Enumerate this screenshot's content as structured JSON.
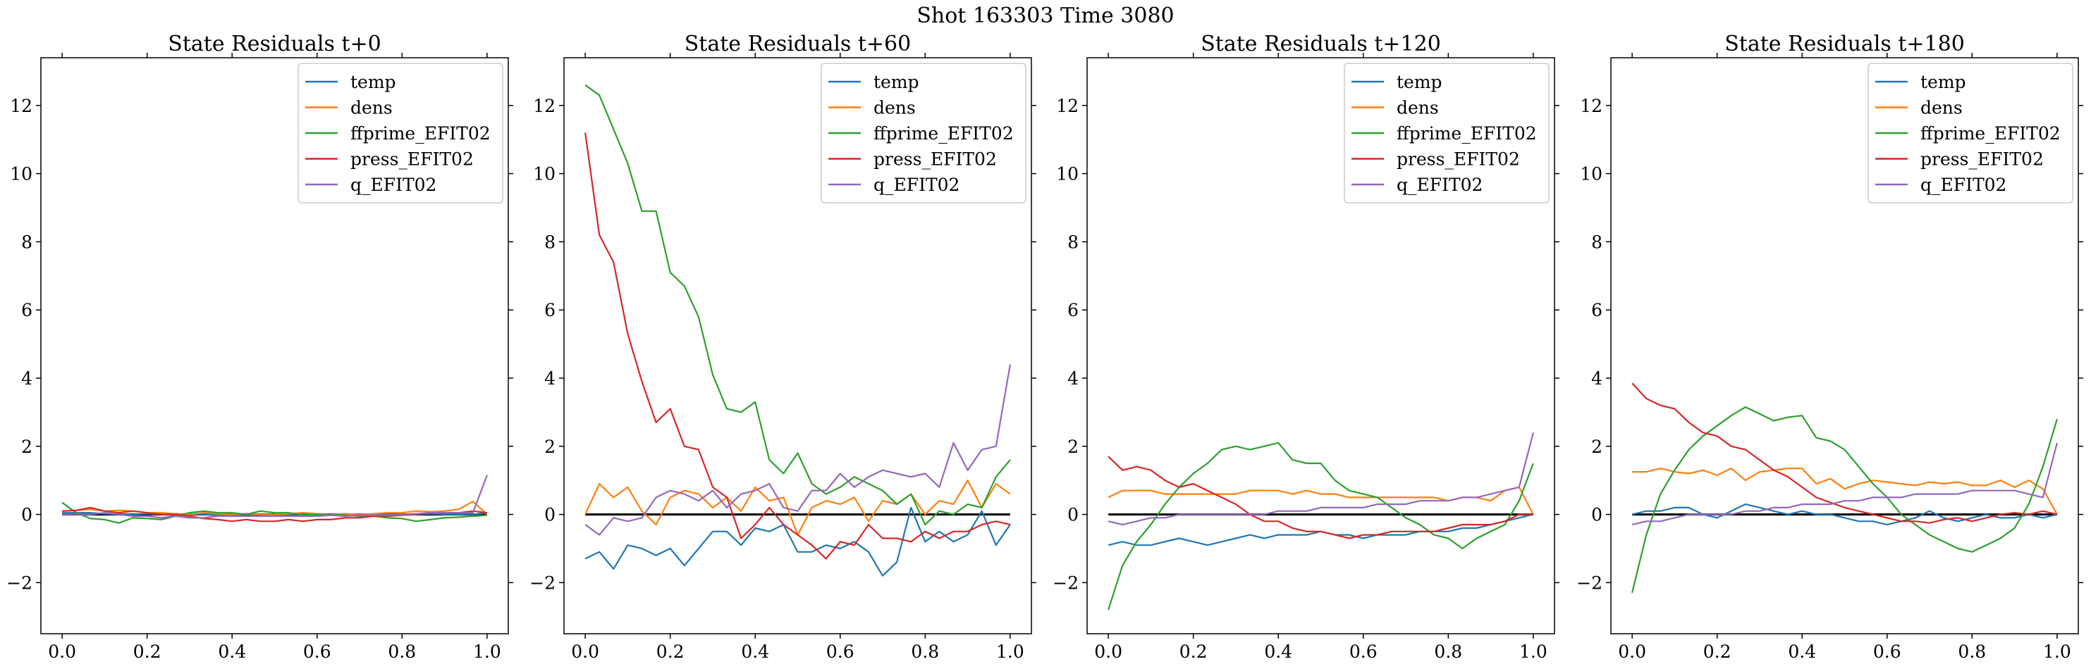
{
  "figure": {
    "title": "Shot 163303   Time 3080"
  },
  "chart_data": [
    {
      "type": "line",
      "title": "State Residuals t+0",
      "xlabel": "",
      "ylabel": "",
      "xlim": [
        -0.05,
        1.05
      ],
      "ylim": [
        -3.5,
        13.4
      ],
      "xticks": [
        "0.0",
        "0.2",
        "0.4",
        "0.6",
        "0.8",
        "1.0"
      ],
      "yticks": [
        "−2",
        "0",
        "2",
        "4",
        "6",
        "8",
        "10",
        "12"
      ],
      "grid": false,
      "legend": "top-right",
      "zero_line": true,
      "x": [
        0.0,
        0.0333,
        0.0667,
        0.1,
        0.1333,
        0.1667,
        0.2,
        0.2333,
        0.2667,
        0.3,
        0.3333,
        0.3667,
        0.4,
        0.4333,
        0.4667,
        0.5,
        0.5333,
        0.5667,
        0.6,
        0.6333,
        0.6667,
        0.7,
        0.7333,
        0.7667,
        0.8,
        0.8333,
        0.8667,
        0.9,
        0.9333,
        0.9667,
        1.0
      ],
      "series": [
        {
          "name": "temp",
          "color": "#1f77b4",
          "values": [
            0.05,
            0.05,
            0.05,
            0.02,
            0.0,
            0.0,
            0.02,
            0.0,
            -0.02,
            0.0,
            0.0,
            -0.02,
            -0.02,
            0.0,
            0.0,
            -0.02,
            0.0,
            0.0,
            -0.02,
            0.0,
            0.0,
            0.0,
            -0.02,
            0.0,
            0.0,
            0.0,
            0.02,
            0.0,
            0.0,
            0.0,
            0.05
          ]
        },
        {
          "name": "dens",
          "color": "#ff7f0e",
          "values": [
            0.1,
            0.12,
            0.15,
            0.1,
            0.12,
            0.1,
            0.05,
            0.05,
            0.02,
            0.0,
            0.05,
            0.02,
            0.0,
            0.02,
            0.0,
            0.0,
            0.02,
            0.05,
            0.02,
            0.0,
            0.02,
            0.0,
            0.02,
            0.05,
            0.05,
            0.1,
            0.08,
            0.1,
            0.15,
            0.38,
            0.0
          ]
        },
        {
          "name": "ffprime_EFIT02",
          "color": "#2ca02c",
          "values": [
            0.35,
            0.05,
            -0.12,
            -0.15,
            -0.25,
            -0.1,
            -0.12,
            -0.15,
            -0.05,
            0.05,
            0.1,
            0.05,
            0.05,
            0.0,
            0.1,
            0.05,
            0.05,
            -0.02,
            0.0,
            0.0,
            -0.02,
            -0.05,
            -0.05,
            -0.1,
            -0.12,
            -0.2,
            -0.15,
            -0.1,
            -0.08,
            -0.05,
            -0.02
          ]
        },
        {
          "name": "press_EFIT02",
          "color": "#d62728",
          "values": [
            0.1,
            0.12,
            0.2,
            0.1,
            0.05,
            0.1,
            0.05,
            0.0,
            0.0,
            -0.05,
            -0.12,
            -0.15,
            -0.2,
            -0.15,
            -0.2,
            -0.2,
            -0.15,
            -0.2,
            -0.15,
            -0.15,
            -0.1,
            -0.1,
            -0.05,
            -0.05,
            -0.02,
            0.0,
            0.05,
            0.05,
            0.05,
            0.1,
            0.05
          ]
        },
        {
          "name": "q_EFIT02",
          "color": "#9467bd",
          "values": [
            0.0,
            0.0,
            0.0,
            0.05,
            0.0,
            -0.05,
            -0.05,
            -0.1,
            -0.05,
            -0.1,
            -0.1,
            -0.05,
            -0.05,
            -0.05,
            -0.05,
            -0.05,
            -0.05,
            -0.05,
            -0.05,
            -0.02,
            -0.05,
            -0.02,
            -0.02,
            -0.02,
            0.0,
            0.02,
            0.05,
            0.05,
            0.05,
            0.05,
            1.15
          ]
        }
      ]
    },
    {
      "type": "line",
      "title": "State Residuals t+60",
      "xlabel": "",
      "ylabel": "",
      "xlim": [
        -0.05,
        1.05
      ],
      "ylim": [
        -3.5,
        13.4
      ],
      "xticks": [
        "0.0",
        "0.2",
        "0.4",
        "0.6",
        "0.8",
        "1.0"
      ],
      "yticks": [
        "−2",
        "0",
        "2",
        "4",
        "6",
        "8",
        "10",
        "12"
      ],
      "grid": false,
      "legend": "top-right",
      "zero_line": true,
      "x": [
        0.0,
        0.0333,
        0.0667,
        0.1,
        0.1333,
        0.1667,
        0.2,
        0.2333,
        0.2667,
        0.3,
        0.3333,
        0.3667,
        0.4,
        0.4333,
        0.4667,
        0.5,
        0.5333,
        0.5667,
        0.6,
        0.6333,
        0.6667,
        0.7,
        0.7333,
        0.7667,
        0.8,
        0.8333,
        0.8667,
        0.9,
        0.9333,
        0.9667,
        1.0
      ],
      "series": [
        {
          "name": "temp",
          "color": "#1f77b4",
          "values": [
            -1.3,
            -1.1,
            -1.6,
            -0.9,
            -1.0,
            -1.2,
            -1.0,
            -1.5,
            -1.0,
            -0.5,
            -0.5,
            -0.9,
            -0.4,
            -0.5,
            -0.3,
            -1.1,
            -1.1,
            -0.9,
            -1.0,
            -0.8,
            -1.1,
            -1.8,
            -1.4,
            0.2,
            -0.8,
            -0.5,
            -0.8,
            -0.6,
            0.1,
            -0.9,
            -0.3
          ]
        },
        {
          "name": "dens",
          "color": "#ff7f0e",
          "values": [
            0.0,
            0.9,
            0.5,
            0.8,
            0.1,
            -0.3,
            0.5,
            0.7,
            0.6,
            0.2,
            0.5,
            0.1,
            0.8,
            0.4,
            0.5,
            -0.6,
            0.2,
            0.4,
            0.3,
            0.5,
            -0.2,
            0.4,
            0.3,
            0.6,
            0.0,
            0.4,
            0.3,
            1.0,
            0.2,
            0.9,
            0.6
          ]
        },
        {
          "name": "ffprime_EFIT02",
          "color": "#2ca02c",
          "values": [
            12.6,
            12.3,
            11.3,
            10.3,
            8.9,
            8.9,
            7.1,
            6.7,
            5.8,
            4.1,
            3.1,
            3.0,
            3.3,
            1.6,
            1.2,
            1.8,
            0.9,
            0.6,
            0.8,
            1.1,
            0.9,
            0.7,
            0.3,
            0.6,
            -0.3,
            0.1,
            0.0,
            0.3,
            0.2,
            1.1,
            1.6
          ]
        },
        {
          "name": "press_EFIT02",
          "color": "#d62728",
          "values": [
            11.2,
            8.2,
            7.4,
            5.3,
            3.9,
            2.7,
            3.1,
            2.0,
            1.9,
            0.8,
            0.5,
            -0.7,
            -0.3,
            0.2,
            -0.3,
            -0.6,
            -0.9,
            -1.3,
            -0.8,
            -0.9,
            -0.3,
            -0.7,
            -0.7,
            -0.8,
            -0.5,
            -0.7,
            -0.5,
            -0.5,
            -0.3,
            -0.2,
            -0.3
          ]
        },
        {
          "name": "q_EFIT02",
          "color": "#9467bd",
          "values": [
            -0.3,
            -0.6,
            -0.1,
            -0.2,
            -0.1,
            0.5,
            0.7,
            0.6,
            0.4,
            0.7,
            0.2,
            0.6,
            0.7,
            0.9,
            0.2,
            0.1,
            0.7,
            0.7,
            1.2,
            0.8,
            1.1,
            1.3,
            1.2,
            1.1,
            1.2,
            0.8,
            2.1,
            1.3,
            1.9,
            2.0,
            4.4
          ]
        }
      ]
    },
    {
      "type": "line",
      "title": "State Residuals t+120",
      "xlabel": "",
      "ylabel": "",
      "xlim": [
        -0.05,
        1.05
      ],
      "ylim": [
        -3.5,
        13.4
      ],
      "xticks": [
        "0.0",
        "0.2",
        "0.4",
        "0.6",
        "0.8",
        "1.0"
      ],
      "yticks": [
        "−2",
        "0",
        "2",
        "4",
        "6",
        "8",
        "10",
        "12"
      ],
      "grid": false,
      "legend": "top-right",
      "zero_line": true,
      "x": [
        0.0,
        0.0333,
        0.0667,
        0.1,
        0.1333,
        0.1667,
        0.2,
        0.2333,
        0.2667,
        0.3,
        0.3333,
        0.3667,
        0.4,
        0.4333,
        0.4667,
        0.5,
        0.5333,
        0.5667,
        0.6,
        0.6333,
        0.6667,
        0.7,
        0.7333,
        0.7667,
        0.8,
        0.8333,
        0.8667,
        0.9,
        0.9333,
        0.9667,
        1.0
      ],
      "series": [
        {
          "name": "temp",
          "color": "#1f77b4",
          "values": [
            -0.9,
            -0.8,
            -0.9,
            -0.9,
            -0.8,
            -0.7,
            -0.8,
            -0.9,
            -0.8,
            -0.7,
            -0.6,
            -0.7,
            -0.6,
            -0.6,
            -0.6,
            -0.5,
            -0.6,
            -0.6,
            -0.7,
            -0.6,
            -0.6,
            -0.6,
            -0.5,
            -0.5,
            -0.5,
            -0.4,
            -0.4,
            -0.3,
            -0.2,
            -0.1,
            0.0
          ]
        },
        {
          "name": "dens",
          "color": "#ff7f0e",
          "values": [
            0.5,
            0.7,
            0.7,
            0.7,
            0.6,
            0.6,
            0.6,
            0.6,
            0.6,
            0.6,
            0.7,
            0.7,
            0.7,
            0.6,
            0.7,
            0.6,
            0.6,
            0.5,
            0.5,
            0.5,
            0.5,
            0.5,
            0.5,
            0.5,
            0.4,
            0.5,
            0.5,
            0.4,
            0.7,
            0.8,
            0.0
          ]
        },
        {
          "name": "ffprime_EFIT02",
          "color": "#2ca02c",
          "values": [
            -2.8,
            -1.5,
            -0.8,
            -0.3,
            0.3,
            0.8,
            1.2,
            1.5,
            1.9,
            2.0,
            1.9,
            2.0,
            2.1,
            1.6,
            1.5,
            1.5,
            1.0,
            0.7,
            0.6,
            0.5,
            0.2,
            -0.1,
            -0.3,
            -0.6,
            -0.7,
            -1.0,
            -0.7,
            -0.5,
            -0.3,
            0.4,
            1.5
          ]
        },
        {
          "name": "press_EFIT02",
          "color": "#d62728",
          "values": [
            1.7,
            1.3,
            1.4,
            1.3,
            1.0,
            0.8,
            0.9,
            0.7,
            0.5,
            0.3,
            0.0,
            -0.2,
            -0.2,
            -0.4,
            -0.5,
            -0.5,
            -0.6,
            -0.7,
            -0.6,
            -0.6,
            -0.5,
            -0.5,
            -0.5,
            -0.5,
            -0.4,
            -0.3,
            -0.3,
            -0.3,
            -0.2,
            0.0,
            0.0
          ]
        },
        {
          "name": "q_EFIT02",
          "color": "#9467bd",
          "values": [
            -0.2,
            -0.3,
            -0.2,
            -0.1,
            -0.1,
            0.0,
            0.0,
            0.0,
            0.0,
            0.0,
            0.0,
            0.0,
            0.1,
            0.1,
            0.1,
            0.2,
            0.2,
            0.2,
            0.2,
            0.3,
            0.3,
            0.3,
            0.4,
            0.4,
            0.4,
            0.5,
            0.5,
            0.6,
            0.7,
            0.8,
            2.4
          ]
        }
      ]
    },
    {
      "type": "line",
      "title": "State Residuals t+180",
      "xlabel": "",
      "ylabel": "",
      "xlim": [
        -0.05,
        1.05
      ],
      "ylim": [
        -3.5,
        13.4
      ],
      "xticks": [
        "0.0",
        "0.2",
        "0.4",
        "0.6",
        "0.8",
        "1.0"
      ],
      "yticks": [
        "−2",
        "0",
        "2",
        "4",
        "6",
        "8",
        "10",
        "12"
      ],
      "grid": false,
      "legend": "top-right",
      "zero_line": true,
      "x": [
        0.0,
        0.0333,
        0.0667,
        0.1,
        0.1333,
        0.1667,
        0.2,
        0.2333,
        0.2667,
        0.3,
        0.3333,
        0.3667,
        0.4,
        0.4333,
        0.4667,
        0.5,
        0.5333,
        0.5667,
        0.6,
        0.6333,
        0.6667,
        0.7,
        0.7333,
        0.7667,
        0.8,
        0.8333,
        0.8667,
        0.9,
        0.9333,
        0.9667,
        1.0
      ],
      "series": [
        {
          "name": "temp",
          "color": "#1f77b4",
          "values": [
            0.0,
            0.1,
            0.1,
            0.2,
            0.2,
            0.0,
            -0.1,
            0.1,
            0.3,
            0.2,
            0.1,
            0.0,
            0.1,
            0.0,
            0.0,
            -0.1,
            -0.2,
            -0.2,
            -0.3,
            -0.2,
            -0.1,
            0.1,
            -0.1,
            -0.2,
            -0.1,
            0.0,
            -0.1,
            -0.1,
            0.0,
            -0.1,
            0.0
          ]
        },
        {
          "name": "dens",
          "color": "#ff7f0e",
          "values": [
            1.25,
            1.25,
            1.35,
            1.25,
            1.2,
            1.3,
            1.15,
            1.35,
            1.0,
            1.25,
            1.3,
            1.35,
            1.35,
            0.9,
            1.05,
            0.75,
            0.9,
            1.0,
            0.95,
            0.9,
            0.85,
            0.95,
            0.9,
            0.95,
            0.85,
            0.85,
            1.0,
            0.8,
            1.0,
            0.75,
            0.0
          ]
        },
        {
          "name": "ffprime_EFIT02",
          "color": "#2ca02c",
          "values": [
            -2.3,
            -0.6,
            0.6,
            1.3,
            1.9,
            2.3,
            2.6,
            2.9,
            3.15,
            2.95,
            2.75,
            2.85,
            2.9,
            2.25,
            2.15,
            1.9,
            1.4,
            0.9,
            0.5,
            0.0,
            -0.3,
            -0.6,
            -0.8,
            -1.0,
            -1.1,
            -0.9,
            -0.7,
            -0.4,
            0.3,
            1.4,
            2.8
          ]
        },
        {
          "name": "press_EFIT02",
          "color": "#d62728",
          "values": [
            3.85,
            3.4,
            3.2,
            3.1,
            2.7,
            2.4,
            2.3,
            2.0,
            1.9,
            1.6,
            1.3,
            1.1,
            0.8,
            0.5,
            0.35,
            0.2,
            0.1,
            0.0,
            -0.1,
            -0.2,
            -0.2,
            -0.25,
            -0.15,
            -0.1,
            -0.2,
            -0.1,
            0.0,
            0.05,
            0.0,
            0.1,
            0.0
          ]
        },
        {
          "name": "q_EFIT02",
          "color": "#9467bd",
          "values": [
            -0.3,
            -0.2,
            -0.2,
            -0.1,
            0.0,
            0.0,
            0.0,
            0.0,
            0.1,
            0.1,
            0.2,
            0.2,
            0.3,
            0.3,
            0.3,
            0.4,
            0.4,
            0.5,
            0.5,
            0.5,
            0.6,
            0.6,
            0.6,
            0.6,
            0.7,
            0.7,
            0.7,
            0.7,
            0.6,
            0.5,
            2.1
          ]
        }
      ]
    }
  ]
}
